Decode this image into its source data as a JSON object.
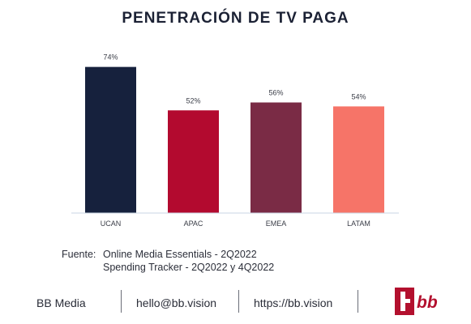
{
  "title": "PENETRACIÓN DE TV PAGA",
  "chart_data": {
    "type": "bar",
    "categories": [
      "UCAN",
      "APAC",
      "EMEA",
      "LATAM"
    ],
    "values": [
      74,
      52,
      56,
      54
    ],
    "value_labels": [
      "74%",
      "52%",
      "56%",
      "54%"
    ],
    "colors": [
      "#16213d",
      "#b30a2f",
      "#7a2b45",
      "#f67468"
    ],
    "title": "PENETRACIÓN DE TV PAGA",
    "xlabel": "",
    "ylabel": "",
    "ylim": [
      0,
      80
    ],
    "grid": false,
    "legend": "none"
  },
  "source": {
    "prefix": "Fuente:",
    "line1": "Online Media Essentials - 2Q2022",
    "line2": "Spending Tracker - 2Q2022 y 4Q2022"
  },
  "footer": {
    "brand": "BB Media",
    "email": "hello@bb.vision",
    "url": "https://bb.vision",
    "logo_text": "bb",
    "logo_color": "#b3102e"
  }
}
